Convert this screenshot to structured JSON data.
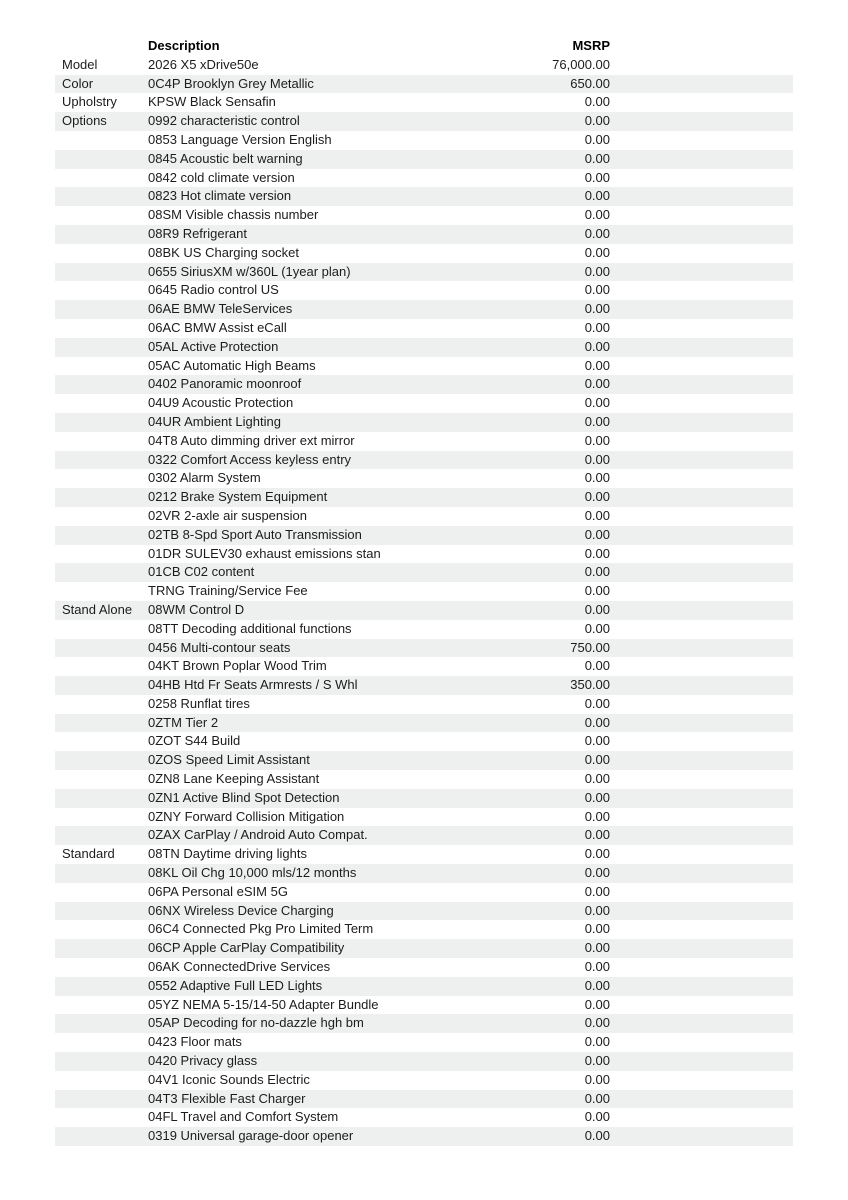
{
  "table": {
    "header": {
      "category": "",
      "description": "Description",
      "msrp": "MSRP"
    },
    "row_colors": {
      "stripe": "#eef0ef",
      "plain": "#ffffff",
      "text": "#1c1c1c"
    },
    "rows": [
      {
        "category": "Model",
        "description": "2026 X5 xDrive50e",
        "msrp": "76,000.00"
      },
      {
        "category": "Color",
        "description": "0C4P Brooklyn Grey Metallic",
        "msrp": "650.00"
      },
      {
        "category": "Upholstry",
        "description": "KPSW Black Sensafin",
        "msrp": "0.00"
      },
      {
        "category": "Options",
        "description": "0992 characteristic control",
        "msrp": "0.00"
      },
      {
        "category": "",
        "description": "0853 Language Version English",
        "msrp": "0.00"
      },
      {
        "category": "",
        "description": "0845 Acoustic belt warning",
        "msrp": "0.00"
      },
      {
        "category": "",
        "description": "0842 cold climate version",
        "msrp": "0.00"
      },
      {
        "category": "",
        "description": "0823 Hot climate version",
        "msrp": "0.00"
      },
      {
        "category": "",
        "description": "08SM Visible chassis number",
        "msrp": "0.00"
      },
      {
        "category": "",
        "description": "08R9 Refrigerant",
        "msrp": "0.00"
      },
      {
        "category": "",
        "description": "08BK US Charging socket",
        "msrp": "0.00"
      },
      {
        "category": "",
        "description": "0655 SiriusXM w/360L (1year plan)",
        "msrp": "0.00"
      },
      {
        "category": "",
        "description": "0645 Radio control US",
        "msrp": "0.00"
      },
      {
        "category": "",
        "description": "06AE BMW TeleServices",
        "msrp": "0.00"
      },
      {
        "category": "",
        "description": "06AC BMW Assist eCall",
        "msrp": "0.00"
      },
      {
        "category": "",
        "description": "05AL Active Protection",
        "msrp": "0.00"
      },
      {
        "category": "",
        "description": "05AC Automatic High Beams",
        "msrp": "0.00"
      },
      {
        "category": "",
        "description": "0402 Panoramic moonroof",
        "msrp": "0.00"
      },
      {
        "category": "",
        "description": "04U9 Acoustic Protection",
        "msrp": "0.00"
      },
      {
        "category": "",
        "description": "04UR Ambient Lighting",
        "msrp": "0.00"
      },
      {
        "category": "",
        "description": "04T8 Auto dimming driver ext mirror",
        "msrp": "0.00"
      },
      {
        "category": "",
        "description": "0322 Comfort Access keyless entry",
        "msrp": "0.00"
      },
      {
        "category": "",
        "description": "0302 Alarm System",
        "msrp": "0.00"
      },
      {
        "category": "",
        "description": "0212 Brake System Equipment",
        "msrp": "0.00"
      },
      {
        "category": "",
        "description": "02VR 2-axle air suspension",
        "msrp": "0.00"
      },
      {
        "category": "",
        "description": "02TB 8-Spd Sport Auto Transmission",
        "msrp": "0.00"
      },
      {
        "category": "",
        "description": "01DR SULEV30 exhaust emissions stan",
        "msrp": "0.00"
      },
      {
        "category": "",
        "description": "01CB C02 content",
        "msrp": "0.00"
      },
      {
        "category": "",
        "description": "TRNG Training/Service Fee",
        "msrp": "0.00"
      },
      {
        "category": "Stand Alone",
        "description": "08WM Control D",
        "msrp": "0.00"
      },
      {
        "category": "",
        "description": "08TT Decoding additional functions",
        "msrp": "0.00"
      },
      {
        "category": "",
        "description": "0456 Multi-contour seats",
        "msrp": "750.00"
      },
      {
        "category": "",
        "description": "04KT Brown Poplar Wood Trim",
        "msrp": "0.00"
      },
      {
        "category": "",
        "description": "04HB Htd Fr Seats Armrests / S Whl",
        "msrp": "350.00"
      },
      {
        "category": "",
        "description": "0258 Runflat tires",
        "msrp": "0.00"
      },
      {
        "category": "",
        "description": "0ZTM Tier 2",
        "msrp": "0.00"
      },
      {
        "category": "",
        "description": "0ZOT S44 Build",
        "msrp": "0.00"
      },
      {
        "category": "",
        "description": "0ZOS Speed Limit Assistant",
        "msrp": "0.00"
      },
      {
        "category": "",
        "description": "0ZN8 Lane Keeping Assistant",
        "msrp": "0.00"
      },
      {
        "category": "",
        "description": "0ZN1 Active Blind Spot Detection",
        "msrp": "0.00"
      },
      {
        "category": "",
        "description": "0ZNY Forward Collision Mitigation",
        "msrp": "0.00"
      },
      {
        "category": "",
        "description": "0ZAX CarPlay / Android Auto Compat.",
        "msrp": "0.00"
      },
      {
        "category": "Standard",
        "description": "08TN Daytime driving lights",
        "msrp": "0.00"
      },
      {
        "category": "",
        "description": "08KL Oil Chg 10,000 mls/12 months",
        "msrp": "0.00"
      },
      {
        "category": "",
        "description": "06PA Personal eSIM 5G",
        "msrp": "0.00"
      },
      {
        "category": "",
        "description": "06NX Wireless Device Charging",
        "msrp": "0.00"
      },
      {
        "category": "",
        "description": "06C4 Connected Pkg Pro Limited Term",
        "msrp": "0.00"
      },
      {
        "category": "",
        "description": "06CP Apple CarPlay Compatibility",
        "msrp": "0.00"
      },
      {
        "category": "",
        "description": "06AK ConnectedDrive Services",
        "msrp": "0.00"
      },
      {
        "category": "",
        "description": "0552 Adaptive Full LED Lights",
        "msrp": "0.00"
      },
      {
        "category": "",
        "description": "05YZ NEMA 5-15/14-50 Adapter Bundle",
        "msrp": "0.00"
      },
      {
        "category": "",
        "description": "05AP Decoding for no-dazzle hgh bm",
        "msrp": "0.00"
      },
      {
        "category": "",
        "description": "0423 Floor mats",
        "msrp": "0.00"
      },
      {
        "category": "",
        "description": "0420 Privacy glass",
        "msrp": "0.00"
      },
      {
        "category": "",
        "description": "04V1 Iconic Sounds Electric",
        "msrp": "0.00"
      },
      {
        "category": "",
        "description": "04T3 Flexible Fast Charger",
        "msrp": "0.00"
      },
      {
        "category": "",
        "description": "04FL Travel and Comfort System",
        "msrp": "0.00"
      },
      {
        "category": "",
        "description": "0319 Universal garage-door opener",
        "msrp": "0.00"
      }
    ]
  }
}
